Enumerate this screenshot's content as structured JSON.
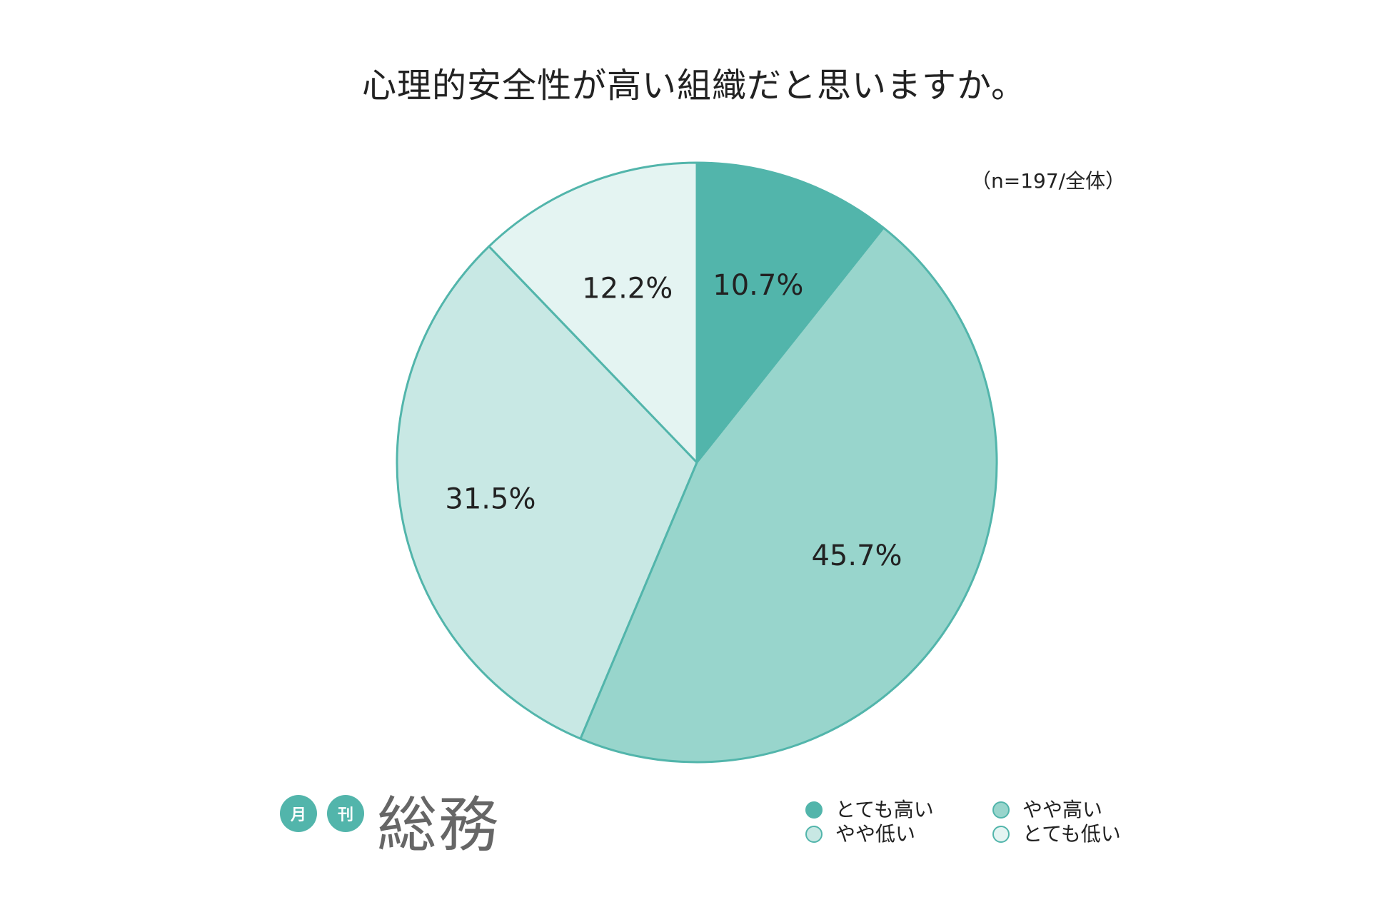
{
  "title": "心理的安全性が高い組織だと思いますか。",
  "note": "（n=197/全体）",
  "chart_data": {
    "type": "pie",
    "title": "心理的安全性が高い組織だと思いますか。",
    "categories": [
      "とても高い",
      "やや高い",
      "やや低い",
      "とても低い"
    ],
    "values": [
      10.7,
      45.7,
      31.5,
      12.2
    ],
    "labels": [
      "10.7%",
      "45.7%",
      "31.5%",
      "12.2%"
    ],
    "colors": [
      "#52b5ab",
      "#98d5cc",
      "#c8e8e4",
      "#e4f4f2"
    ],
    "edge_color": "#52b5ab",
    "start": "12 o'clock",
    "direction": "clockwise",
    "legend_position": "bottom-right"
  },
  "legend": [
    {
      "label": "とても高い",
      "color": "#52b5ab"
    },
    {
      "label": "やや高い",
      "color": "#98d5cc"
    },
    {
      "label": "やや低い",
      "color": "#c8e8e4"
    },
    {
      "label": "とても低い",
      "color": "#e4f4f2"
    }
  ],
  "logo": {
    "badge1": "月",
    "badge2": "刊",
    "name": "総務",
    "color": "#52b5ab"
  }
}
